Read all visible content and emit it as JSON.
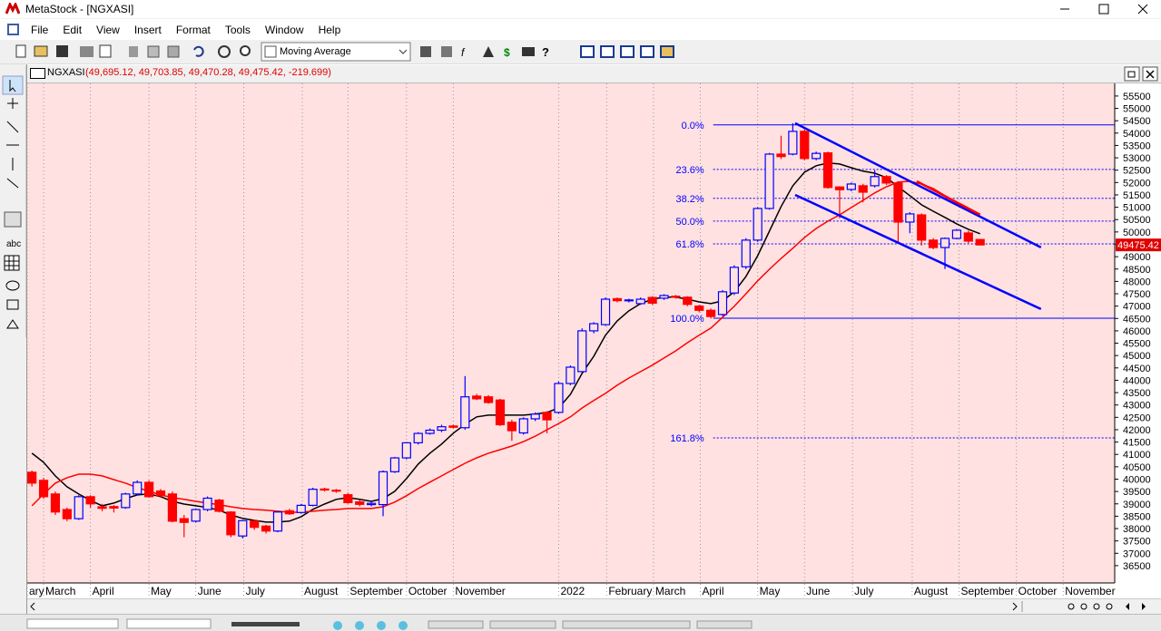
{
  "window": {
    "title": "MetaStock - [NGXASI]"
  },
  "menu": [
    "File",
    "Edit",
    "View",
    "Insert",
    "Format",
    "Tools",
    "Window",
    "Help"
  ],
  "toolbar": {
    "indicator": "Moving Average"
  },
  "left_toolbar": {
    "text_tool": "abc"
  },
  "chart_data": {
    "type": "candlestick",
    "title": "NGXASI",
    "subtitle": "(49,695.12, 49,703.85, 49,470.28, 49,475.42, -219.699)",
    "open": [
      40280,
      39950,
      39400,
      38770,
      38400,
      39290,
      38880,
      38890,
      38850,
      39400,
      39870,
      39520,
      39400,
      38400,
      38300,
      38770,
      39150,
      38670,
      37700,
      38300,
      38100,
      37900,
      38720,
      38650,
      38940,
      39600,
      39550,
      39370,
      39080,
      38970,
      38970,
      40300,
      40860,
      41470,
      41850,
      41980,
      42150,
      42080,
      43360,
      43330,
      43200,
      42300,
      41870,
      42440,
      42700,
      42700,
      43870,
      44350,
      46000,
      46250,
      47300,
      47230,
      47100,
      47350,
      47320,
      47400,
      47360,
      47000,
      46830,
      46660,
      47530,
      48590,
      49670,
      50950,
      53150,
      53150,
      54070,
      52970,
      53200,
      51820,
      51720,
      51870,
      51870,
      52240,
      51980,
      50400,
      50690,
      49670,
      49370,
      49740,
      49960,
      49695.12
    ],
    "high": [
      40350,
      40050,
      39500,
      38850,
      39350,
      39350,
      39000,
      38950,
      39450,
      39950,
      39950,
      39600,
      39500,
      38550,
      38800,
      39300,
      39200,
      38700,
      38350,
      38350,
      38150,
      38700,
      38800,
      39000,
      39650,
      39650,
      39600,
      39450,
      39150,
      39100,
      40350,
      40900,
      41500,
      41900,
      42050,
      42200,
      42200,
      44170,
      43450,
      43400,
      43250,
      42400,
      42500,
      42700,
      42750,
      43950,
      44600,
      46100,
      46350,
      47350,
      47350,
      47300,
      47350,
      47400,
      47480,
      47450,
      47400,
      47050,
      46900,
      47650,
      48650,
      49750,
      51000,
      53200,
      53890,
      54400,
      54150,
      53250,
      53250,
      51850,
      52000,
      51950,
      52500,
      52300,
      52050,
      50800,
      50750,
      49750,
      49780,
      50120,
      50050,
      49703.85
    ],
    "low": [
      39700,
      39200,
      38550,
      38300,
      38350,
      38850,
      38700,
      38650,
      38800,
      39350,
      39250,
      39250,
      38250,
      37650,
      38250,
      38700,
      38650,
      37650,
      37600,
      37950,
      37800,
      37850,
      38550,
      38600,
      38900,
      39500,
      39450,
      39000,
      38900,
      38900,
      38500,
      40250,
      40800,
      41400,
      41800,
      41900,
      42050,
      42000,
      43200,
      43050,
      42150,
      41550,
      41800,
      42350,
      41850,
      42650,
      43800,
      44300,
      45900,
      46200,
      47150,
      47150,
      47050,
      47050,
      47250,
      47300,
      47000,
      46750,
      46500,
      46600,
      47450,
      48500,
      49600,
      50900,
      52950,
      53100,
      52900,
      52900,
      51750,
      50550,
      51650,
      51200,
      51800,
      51900,
      49600,
      49950,
      49450,
      49300,
      48500,
      49700,
      49550,
      49470.28
    ],
    "close": [
      39840,
      39290,
      38670,
      38400,
      39290,
      39000,
      38820,
      38830,
      39400,
      39870,
      39290,
      39330,
      38300,
      38250,
      38770,
      39230,
      38700,
      37750,
      38320,
      38050,
      37900,
      38670,
      38600,
      38940,
      39590,
      39560,
      39520,
      39050,
      38980,
      39020,
      40300,
      40860,
      41470,
      41850,
      41980,
      42120,
      42100,
      43330,
      43250,
      43100,
      42200,
      41960,
      42440,
      42630,
      42400,
      43870,
      44530,
      46000,
      46290,
      47280,
      47220,
      47250,
      47280,
      47120,
      47430,
      47360,
      47070,
      46830,
      46580,
      47580,
      48570,
      49670,
      50950,
      53150,
      53050,
      54070,
      52970,
      53180,
      51800,
      51710,
      51940,
      51610,
      52240,
      51980,
      50400,
      50730,
      49670,
      49370,
      49740,
      50070,
      49630,
      49475.42
    ],
    "up_color": "#0000ff",
    "down_color": "#ff0000",
    "moving_averages": [
      {
        "color": "#000000",
        "values": [
          41050,
          40680,
          40130,
          39690,
          39400,
          39140,
          38920,
          39030,
          39210,
          39360,
          39400,
          39290,
          39100,
          38990,
          38920,
          38850,
          38740,
          38550,
          38410,
          38330,
          38260,
          38260,
          38300,
          38480,
          38780,
          38990,
          39180,
          39250,
          39180,
          39100,
          39210,
          39510,
          40020,
          40610,
          41050,
          41420,
          41860,
          42220,
          42520,
          42590,
          42590,
          42590,
          42590,
          42630,
          42700,
          42880,
          43430,
          44280,
          44970,
          45820,
          46400,
          46810,
          47100,
          47280,
          47360,
          47360,
          47280,
          47170,
          47100,
          47210,
          47580,
          48200,
          49040,
          50030,
          51030,
          51870,
          52420,
          52680,
          52790,
          52750,
          52600,
          52460,
          52380,
          52200,
          51830,
          51470,
          51100,
          50840,
          50590,
          50330,
          50110,
          49930
        ]
      },
      {
        "color": "#ff0000",
        "values": [
          38920,
          39400,
          39840,
          40060,
          40200,
          40200,
          40130,
          39980,
          39840,
          39660,
          39510,
          39360,
          39250,
          39180,
          39100,
          39030,
          38960,
          38880,
          38810,
          38770,
          38740,
          38700,
          38660,
          38660,
          38700,
          38740,
          38770,
          38810,
          38810,
          38810,
          38880,
          39070,
          39330,
          39620,
          39880,
          40130,
          40390,
          40640,
          40860,
          41050,
          41190,
          41340,
          41520,
          41740,
          42000,
          42250,
          42520,
          42880,
          43180,
          43470,
          43800,
          44090,
          44350,
          44610,
          44900,
          45190,
          45520,
          45820,
          46110,
          46550,
          46990,
          47500,
          48020,
          48490,
          48930,
          49340,
          49780,
          50140,
          50440,
          50690,
          50990,
          51280,
          51580,
          51830,
          52020,
          52050,
          51940,
          51760,
          51470,
          51170,
          50880,
          50660
        ]
      }
    ],
    "fib_x": 58.2,
    "fib_color": "#0000ff",
    "fib_levels": [
      {
        "value": 54330,
        "label": "0.0%",
        "dashed": false
      },
      {
        "value": 52530,
        "label": "23.6%",
        "dashed": true
      },
      {
        "value": 51360,
        "label": "38.2%",
        "dashed": true
      },
      {
        "value": 50440,
        "label": "50.0%",
        "dashed": true
      },
      {
        "value": 49520,
        "label": "61.8%",
        "dashed": true
      },
      {
        "value": 46510,
        "label": "100.0%",
        "dashed": false
      },
      {
        "value": 41670,
        "label": "161.8%",
        "dashed": true
      }
    ],
    "trendlines": [
      {
        "x": [
          65.2,
          86.2
        ],
        "values": [
          54400,
          49375
        ],
        "color": "#0000ff"
      },
      {
        "x": [
          65.2,
          86.2
        ],
        "values": [
          51500,
          46880
        ],
        "color": "#0000ff"
      },
      {
        "x": [
          75.6,
          81.0
        ],
        "values": [
          52050,
          50700
        ],
        "color": "#ff0000"
      }
    ],
    "last_price": 49475.42,
    "xlim": [
      -0.4,
      92.5
    ],
    "xticks": [
      {
        "value": -0.4,
        "label": "ary"
      },
      {
        "value": 1.0,
        "label": "March"
      },
      {
        "value": 5.0,
        "label": "April"
      },
      {
        "value": 10.0,
        "label": "May"
      },
      {
        "value": 14.0,
        "label": "June"
      },
      {
        "value": 18.1,
        "label": "July"
      },
      {
        "value": 23.1,
        "label": "August"
      },
      {
        "value": 27.0,
        "label": "September"
      },
      {
        "value": 32.0,
        "label": "October"
      },
      {
        "value": 36.0,
        "label": "November"
      },
      {
        "value": 45.0,
        "label": "2022"
      },
      {
        "value": 49.1,
        "label": "February"
      },
      {
        "value": 53.1,
        "label": "March"
      },
      {
        "value": 57.1,
        "label": "April"
      },
      {
        "value": 62.0,
        "label": "May"
      },
      {
        "value": 66.0,
        "label": "June"
      },
      {
        "value": 70.1,
        "label": "July"
      },
      {
        "value": 75.2,
        "label": "August"
      },
      {
        "value": 79.2,
        "label": "September"
      },
      {
        "value": 84.1,
        "label": "October"
      },
      {
        "value": 88.1,
        "label": "November"
      }
    ],
    "ylim": [
      35800,
      56010
    ],
    "yticks": [
      36500,
      37000,
      37500,
      38000,
      38500,
      39000,
      39500,
      40000,
      40500,
      41000,
      41500,
      42000,
      42500,
      43000,
      43500,
      44000,
      44500,
      45000,
      45500,
      46000,
      46500,
      47000,
      47500,
      48000,
      48500,
      49000,
      49500,
      50000,
      50500,
      51000,
      51500,
      52000,
      52500,
      53000,
      53500,
      54000,
      54500,
      55000,
      55500
    ],
    "grid": true
  }
}
